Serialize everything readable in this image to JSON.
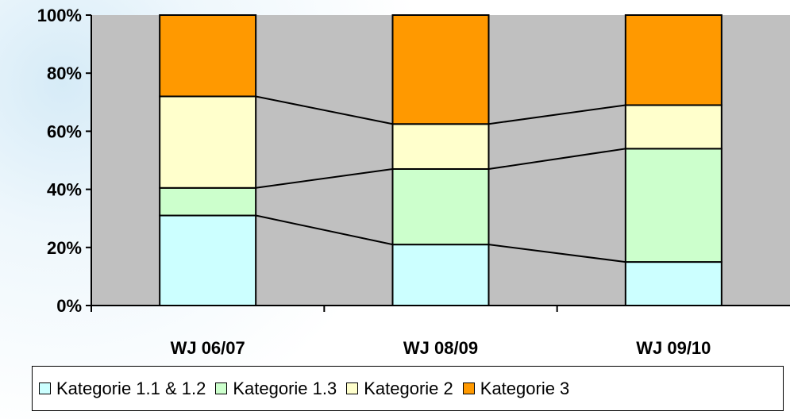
{
  "chart_data": {
    "type": "bar",
    "stacked": true,
    "normalized": true,
    "categories": [
      "WJ 06/07",
      "WJ 08/09",
      "WJ 09/10"
    ],
    "series": [
      {
        "name": "Kategorie 1.1 & 1.2",
        "color": "#ccffff",
        "values": [
          31,
          21,
          15
        ]
      },
      {
        "name": "Kategorie 1.3",
        "color": "#ccffcc",
        "values": [
          9.5,
          26,
          39
        ]
      },
      {
        "name": "Kategorie 2",
        "color": "#ffffcc",
        "values": [
          31.5,
          15.5,
          15
        ]
      },
      {
        "name": "Kategorie 3",
        "color": "#ff9900",
        "values": [
          28,
          37.5,
          31
        ]
      }
    ],
    "yticks": [
      "0%",
      "20%",
      "40%",
      "60%",
      "80%",
      "100%"
    ],
    "ylim": [
      0,
      100
    ],
    "series_lines": true,
    "plot_background": "#c0c0c0",
    "legend_position": "bottom",
    "title": "",
    "xlabel": "",
    "ylabel": ""
  }
}
